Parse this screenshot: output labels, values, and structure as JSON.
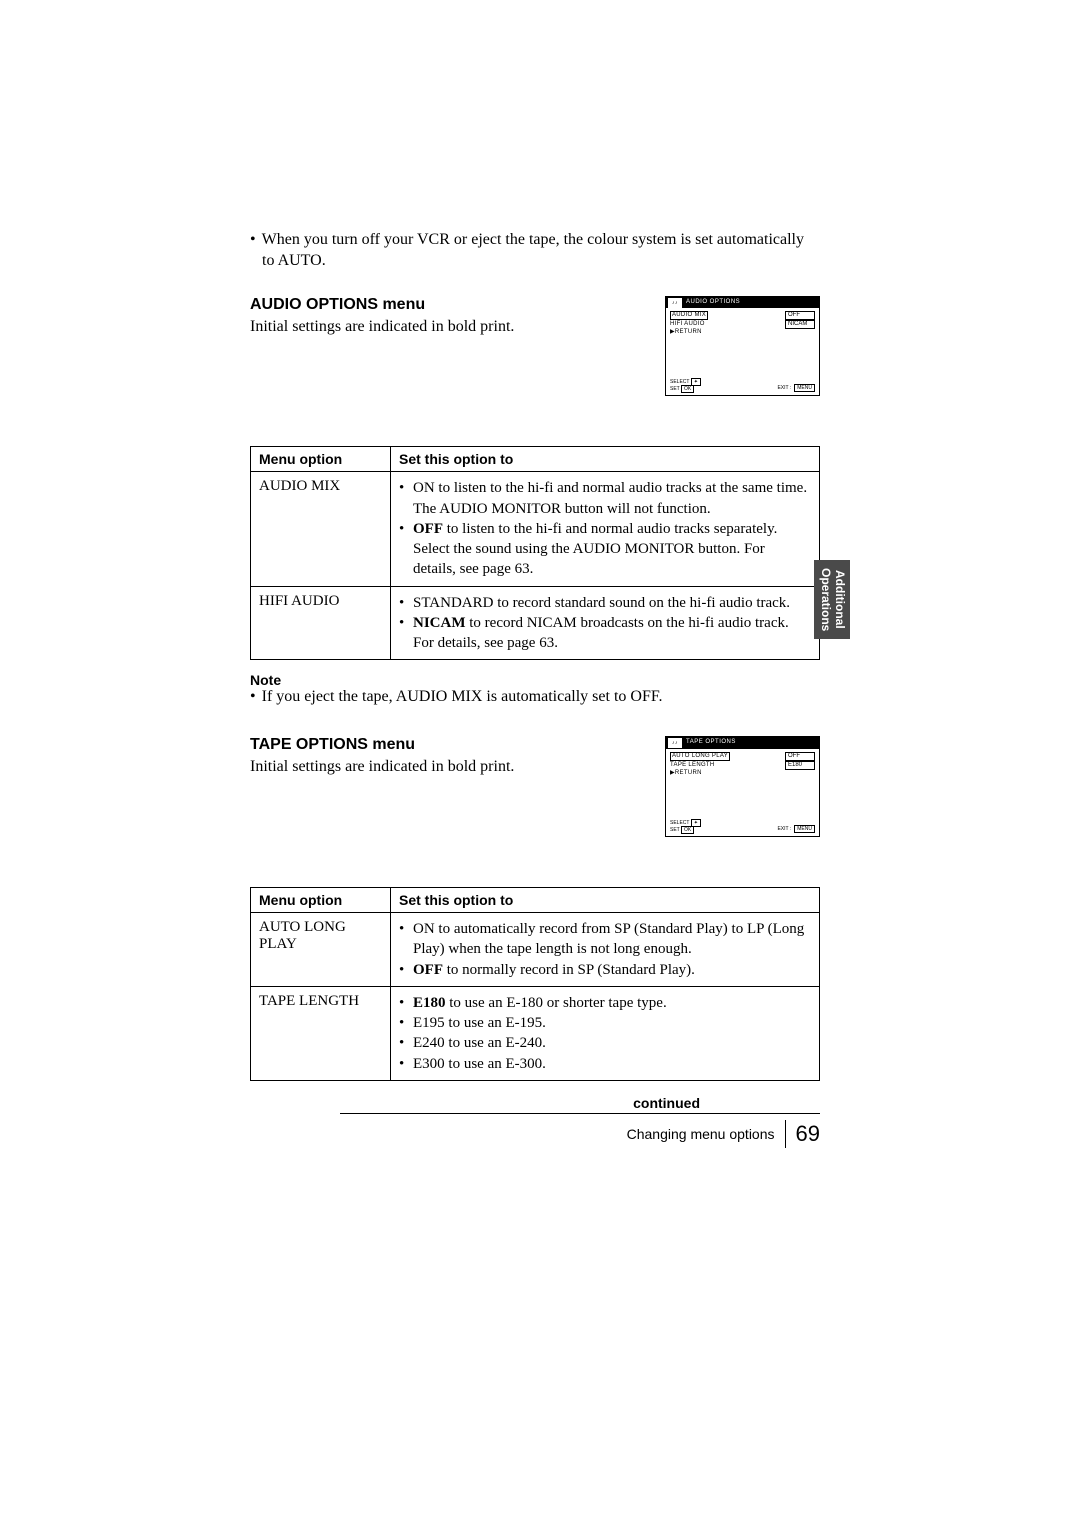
{
  "top_note": "When you turn off your VCR or eject the tape, the colour system is set automatically to AUTO.",
  "audio": {
    "title": "AUDIO OPTIONS menu",
    "intro": "Initial settings are indicated in bold print.",
    "osd": {
      "header": "AUDIO  OPTIONS",
      "icon": "♪♪",
      "rows": [
        {
          "left": "AUDIO MIX",
          "right": "OFF",
          "highlight": true
        },
        {
          "left": "HIFI AUDIO",
          "right": "NICAM",
          "highlight": false
        },
        {
          "left": "▶RETURN",
          "right": "",
          "highlight": false
        }
      ],
      "footer_left_1": "SELECT",
      "footer_left_2": "SET",
      "footer_key": "OK",
      "footer_exit": "EXIT :",
      "footer_menu": "MENU"
    },
    "table": {
      "col1": "Menu option",
      "col2": "Set this option to",
      "rows": [
        {
          "name": "AUDIO MIX",
          "items": [
            "ON to listen to the hi-fi and normal audio tracks at the same time. The AUDIO MONITOR button will not function.",
            "<b>OFF</b> to listen to the hi-fi and normal audio tracks separately. Select the sound using the AUDIO MONITOR button. For details, see page 63."
          ]
        },
        {
          "name": "HIFI AUDIO",
          "items": [
            "STANDARD to record standard sound on the hi-fi audio track.",
            "<b>NICAM</b> to record NICAM broadcasts on the hi-fi audio track. For details, see page 63."
          ]
        }
      ]
    },
    "note_title": "Note",
    "note_text": "If you eject the tape, AUDIO MIX is automatically set to OFF."
  },
  "tape": {
    "title": "TAPE OPTIONS menu",
    "intro": "Initial settings are indicated in bold print.",
    "osd": {
      "header": "TAPE  OPTIONS",
      "icon": "♪♪",
      "rows": [
        {
          "left": "AUTO  LONG  PLAY",
          "right": "OFF",
          "highlight": true
        },
        {
          "left": "TAPE  LENGTH",
          "right": "E180",
          "highlight": false
        },
        {
          "left": "▶RETURN",
          "right": "",
          "highlight": false
        }
      ],
      "footer_left_1": "SELECT",
      "footer_left_2": "SET",
      "footer_key": "OK",
      "footer_exit": "EXIT :",
      "footer_menu": "MENU"
    },
    "table": {
      "col1": "Menu option",
      "col2": "Set this option to",
      "rows": [
        {
          "name": "AUTO LONG PLAY",
          "items": [
            "ON to automatically record from SP (Standard Play) to LP (Long Play) when the tape length is not long enough.",
            "<b>OFF</b> to normally record in SP (Standard Play)."
          ]
        },
        {
          "name": "TAPE LENGTH",
          "items": [
            "<b>E180</b> to use an E-180 or shorter tape type.",
            "E195 to use an E-195.",
            "E240 to use an E-240.",
            "E300 to use an E-300."
          ]
        }
      ]
    }
  },
  "side_tab_1": "Additional",
  "side_tab_2": "Operations",
  "footer": {
    "continued": "continued",
    "topic": "Changing menu options",
    "page": "69"
  }
}
